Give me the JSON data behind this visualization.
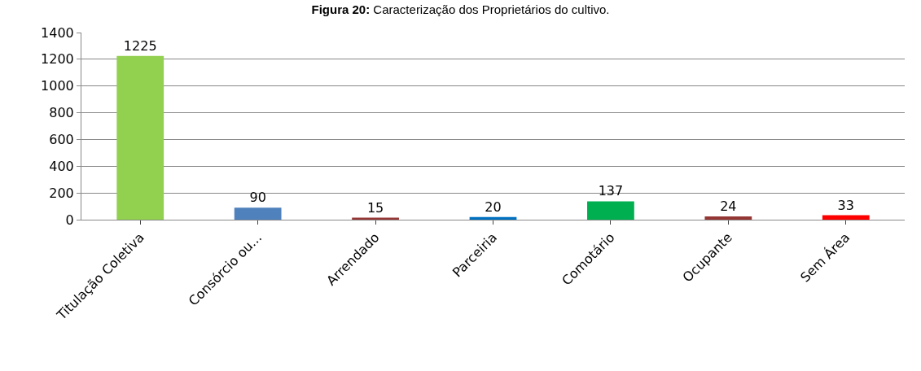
{
  "chart_data": {
    "type": "bar",
    "title": "Figura 20: Caracterização dos Proprietários do cultivo.",
    "categories": [
      "Titulação Coletiva",
      "Consórcio ou...",
      "Arrendado",
      "Parceiria",
      "Comotário",
      "Ocupante",
      "Sem Área"
    ],
    "values": [
      1225,
      90,
      15,
      20,
      137,
      24,
      33
    ],
    "colors": [
      "#92d050",
      "#4f81bd",
      "#953735",
      "#0070c0",
      "#00b050",
      "#943634",
      "#ff0000"
    ],
    "ylim": [
      0,
      1400
    ],
    "yticks": [
      0,
      200,
      400,
      600,
      800,
      1000,
      1200,
      1400
    ],
    "grid": "y",
    "data_labels": true
  }
}
